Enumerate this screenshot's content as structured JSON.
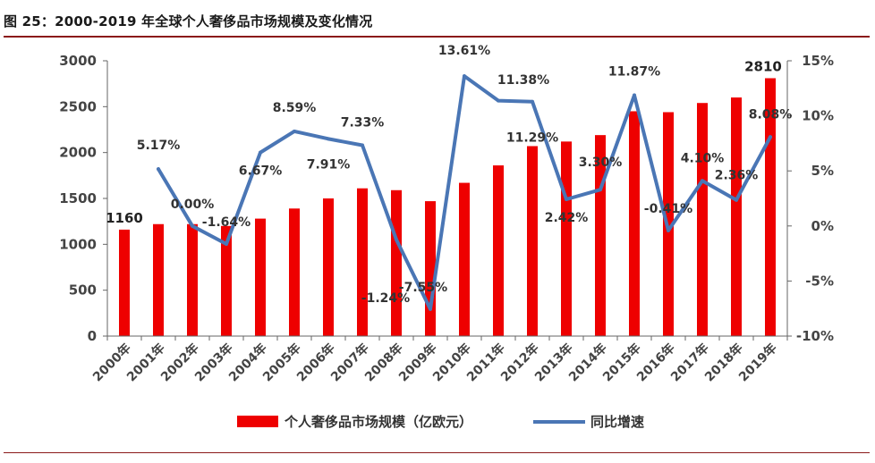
{
  "figure": {
    "title": "图 25：2000-2019 年全球个人奢侈品市场规模及变化情况"
  },
  "colors": {
    "bar": "#ee0000",
    "line": "#4a76b5",
    "axis": "#666666",
    "rule": "#8b1a1a"
  },
  "chart_data": {
    "type": "bar",
    "categories": [
      "2000年",
      "2001年",
      "2002年",
      "2003年",
      "2004年",
      "2005年",
      "2006年",
      "2007年",
      "2008年",
      "2009年",
      "2010年",
      "2011年",
      "2012年",
      "2013年",
      "2014年",
      "2015年",
      "2016年",
      "2017年",
      "2018年",
      "2019年"
    ],
    "series": [
      {
        "name": "个人奢侈品市场规模（亿欧元）",
        "type": "bar",
        "axis": "left",
        "values": [
          1160,
          1220,
          1220,
          1200,
          1280,
          1390,
          1500,
          1610,
          1590,
          1470,
          1670,
          1860,
          2070,
          2120,
          2190,
          2450,
          2440,
          2540,
          2600,
          2810
        ]
      },
      {
        "name": "同比增速",
        "type": "line",
        "axis": "right",
        "values": [
          null,
          5.17,
          0.0,
          -1.64,
          6.67,
          8.59,
          7.91,
          7.33,
          -1.24,
          -7.55,
          13.61,
          11.38,
          11.29,
          2.42,
          3.3,
          11.87,
          -0.41,
          4.1,
          2.36,
          8.08
        ]
      }
    ],
    "bar_labels": [
      {
        "index": 0,
        "text": "1160"
      },
      {
        "index": 19,
        "text": "2810"
      }
    ],
    "line_labels": [
      "",
      "5.17%",
      "0.00%",
      "-1.64%",
      "6.67%",
      "8.59%",
      "7.91%",
      "7.33%",
      "-1.24%",
      "-7.55%",
      "13.61%",
      "11.38%",
      "11.29%",
      "2.42%",
      "3.30%",
      "11.87%",
      "-0.41%",
      "4.10%",
      "2.36%",
      "8.08%"
    ],
    "left_axis": {
      "min": 0,
      "max": 3000,
      "ticks": [
        "0",
        "500",
        "1000",
        "1500",
        "2000",
        "2500",
        "3000"
      ]
    },
    "right_axis": {
      "min": -10,
      "max": 15,
      "ticks": [
        "-10%",
        "-5%",
        "0%",
        "5%",
        "10%",
        "15%"
      ]
    },
    "grid": false,
    "legend_position": "bottom"
  }
}
